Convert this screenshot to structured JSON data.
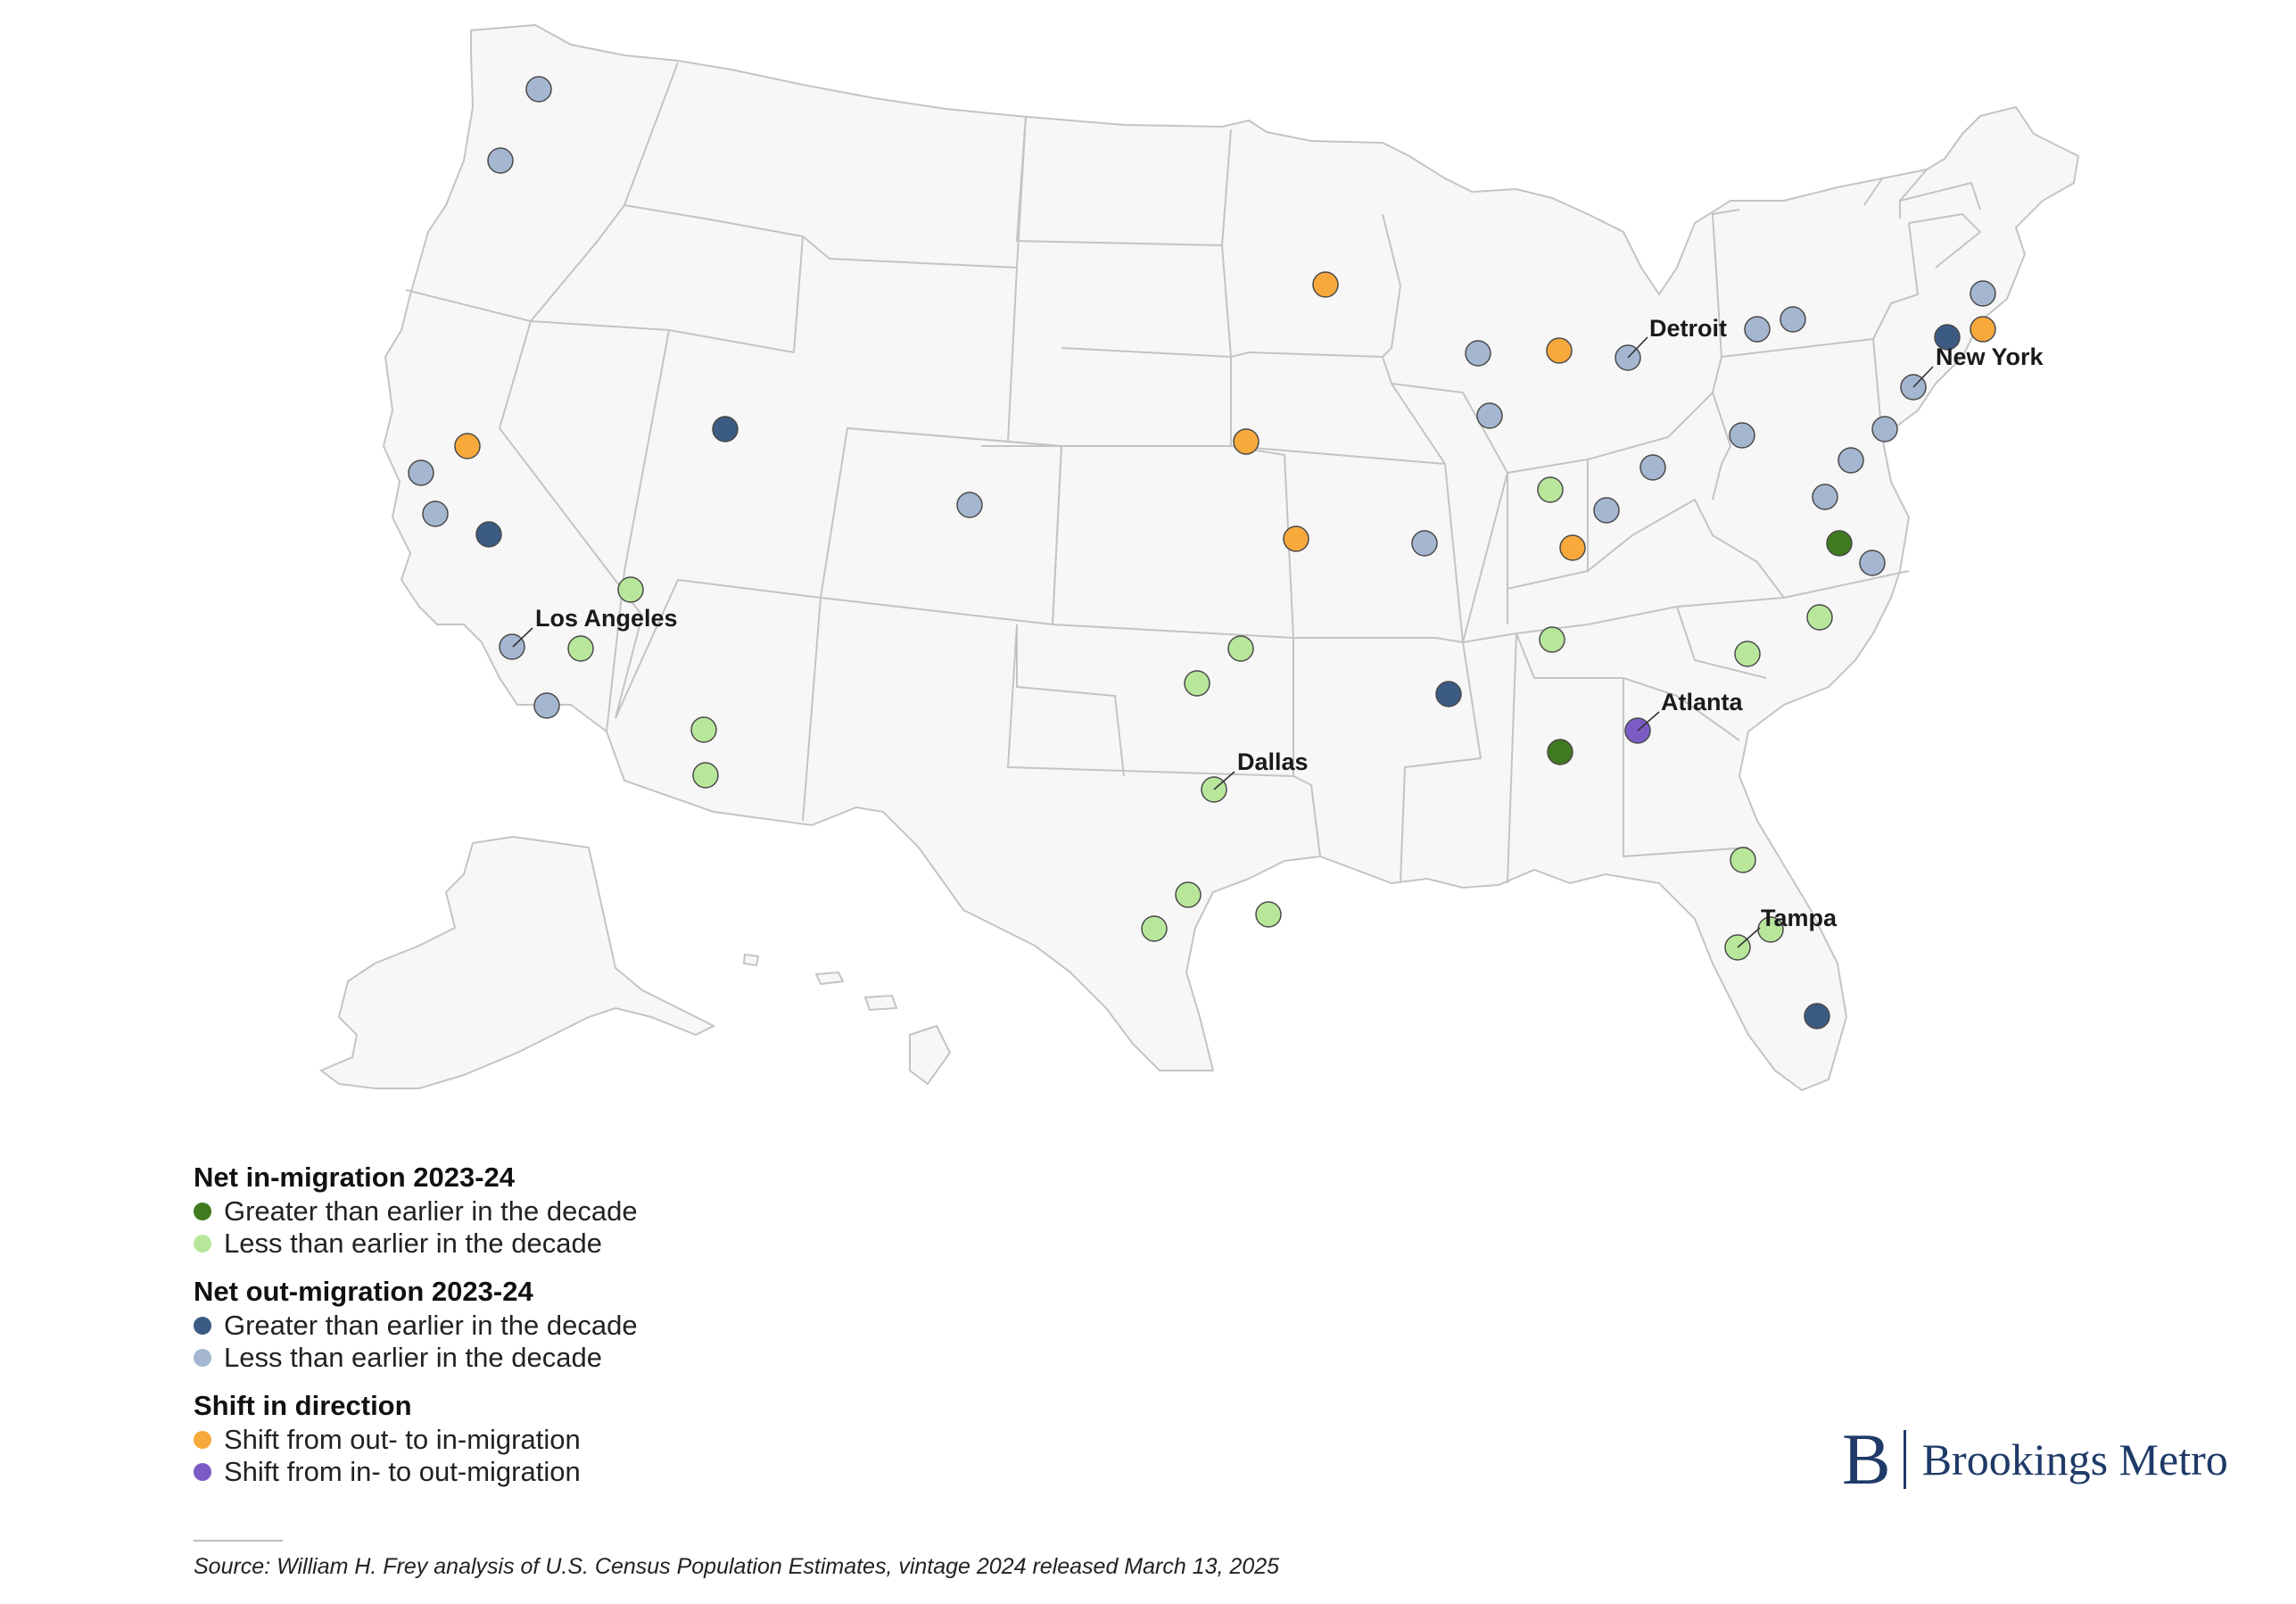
{
  "legend": {
    "in_heading": "Net in-migration 2023-24",
    "in_greater": "Greater than earlier in the decade",
    "in_less": "Less than earlier in the decade",
    "out_heading": "Net out-migration 2023-24",
    "out_greater": "Greater than earlier in the decade",
    "out_less": "Less than earlier in the decade",
    "shift_heading": "Shift in direction",
    "shift_out_to_in": "Shift from out- to in-migration",
    "shift_in_to_out": "Shift from in- to out-migration"
  },
  "colors": {
    "in_greater": "#3f7a1f",
    "in_less": "#b8e79b",
    "out_greater": "#3b5b85",
    "out_less": "#a4b6d0",
    "shift_out_to_in": "#f7a93b",
    "shift_in_to_out": "#7a5cc4"
  },
  "city_labels": {
    "los_angeles": "Los Angeles",
    "dallas": "Dallas",
    "atlanta": "Atlanta",
    "tampa": "Tampa",
    "detroit": "Detroit",
    "new_york": "New York"
  },
  "source": "Source: William H. Frey analysis of U.S. Census Population Estimates, vintage 2024 released March 13, 2025",
  "brand": {
    "initial": "B",
    "name": "Brookings Metro"
  }
}
